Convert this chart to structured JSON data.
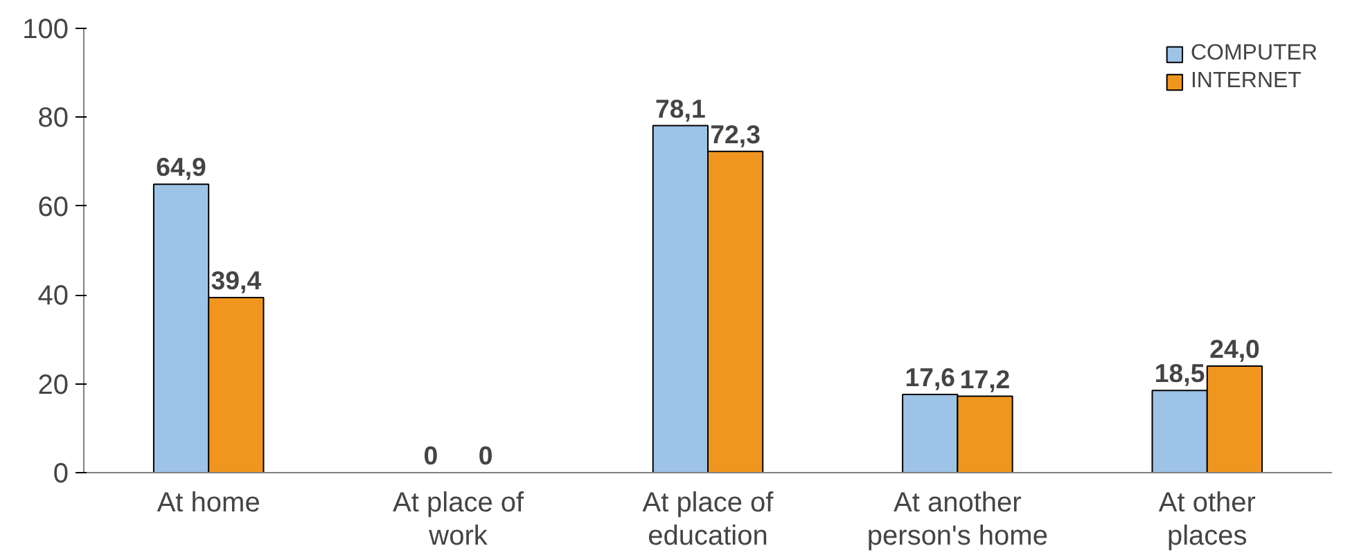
{
  "chart_data": {
    "type": "bar",
    "categories": [
      "At home",
      "At place of\nwork",
      "At place of\neducation",
      "At another\nperson's home",
      "At other\nplaces"
    ],
    "series": [
      {
        "name": "COMPUTER",
        "color": "#9dc3e6",
        "values": [
          64.9,
          0,
          78.1,
          17.6,
          18.5
        ],
        "value_labels": [
          "64,9",
          "0",
          "78,1",
          "17,6",
          "18,5"
        ]
      },
      {
        "name": "INTERNET",
        "color": "#f0961e",
        "values": [
          39.4,
          0,
          72.3,
          17.2,
          24.0
        ],
        "value_labels": [
          "39,4",
          "0",
          "72,3",
          "17,2",
          "24,0"
        ]
      }
    ],
    "ylim": [
      0,
      100
    ],
    "yticks": [
      0,
      20,
      40,
      60,
      80,
      100
    ],
    "grid": false,
    "legend": "top right"
  }
}
